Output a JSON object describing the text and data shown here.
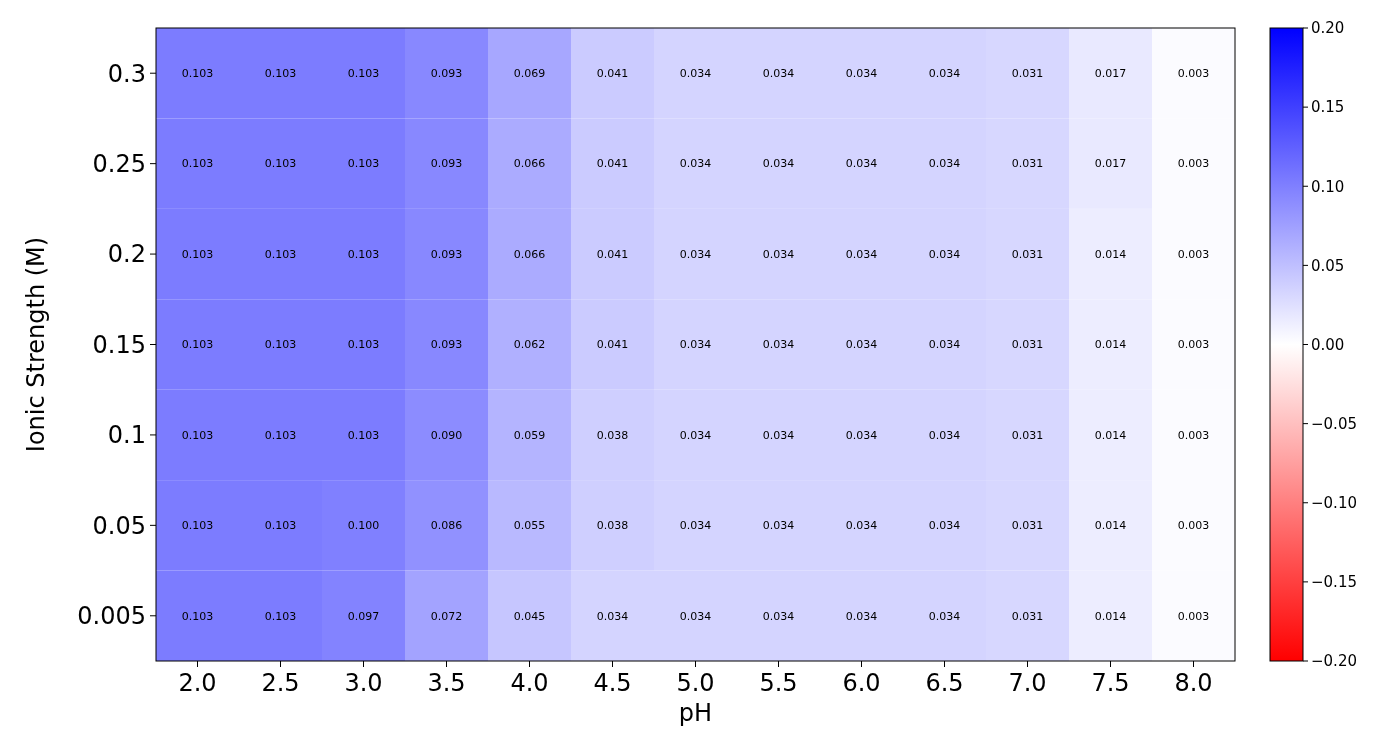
{
  "chart_data": {
    "type": "heatmap",
    "xlabel": "pH",
    "ylabel": "Ionic Strength (M)",
    "categories": [
      "2.0",
      "2.5",
      "3.0",
      "3.5",
      "4.0",
      "4.5",
      "5.0",
      "5.5",
      "6.0",
      "6.5",
      "7.0",
      "7.5",
      "8.0"
    ],
    "y_categories": [
      "0.3",
      "0.25",
      "0.2",
      "0.15",
      "0.1",
      "0.05",
      "0.005"
    ],
    "cells": [
      [
        0.103,
        0.103,
        0.103,
        0.093,
        0.069,
        0.041,
        0.034,
        0.034,
        0.034,
        0.034,
        0.031,
        0.017,
        0.003
      ],
      [
        0.103,
        0.103,
        0.103,
        0.093,
        0.066,
        0.041,
        0.034,
        0.034,
        0.034,
        0.034,
        0.031,
        0.017,
        0.003
      ],
      [
        0.103,
        0.103,
        0.103,
        0.093,
        0.066,
        0.041,
        0.034,
        0.034,
        0.034,
        0.034,
        0.031,
        0.014,
        0.003
      ],
      [
        0.103,
        0.103,
        0.103,
        0.093,
        0.062,
        0.041,
        0.034,
        0.034,
        0.034,
        0.034,
        0.031,
        0.014,
        0.003
      ],
      [
        0.103,
        0.103,
        0.103,
        0.09,
        0.059,
        0.038,
        0.034,
        0.034,
        0.034,
        0.034,
        0.031,
        0.014,
        0.003
      ],
      [
        0.103,
        0.103,
        0.1,
        0.086,
        0.055,
        0.038,
        0.034,
        0.034,
        0.034,
        0.034,
        0.031,
        0.014,
        0.003
      ],
      [
        0.103,
        0.103,
        0.097,
        0.072,
        0.045,
        0.034,
        0.034,
        0.034,
        0.034,
        0.034,
        0.031,
        0.014,
        0.003
      ]
    ],
    "cell_labels": [
      [
        "0.103",
        "0.103",
        "0.103",
        "0.093",
        "0.069",
        "0.041",
        "0.034",
        "0.034",
        "0.034",
        "0.034",
        "0.031",
        "0.017",
        "0.003"
      ],
      [
        "0.103",
        "0.103",
        "0.103",
        "0.093",
        "0.066",
        "0.041",
        "0.034",
        "0.034",
        "0.034",
        "0.034",
        "0.031",
        "0.017",
        "0.003"
      ],
      [
        "0.103",
        "0.103",
        "0.103",
        "0.093",
        "0.066",
        "0.041",
        "0.034",
        "0.034",
        "0.034",
        "0.034",
        "0.031",
        "0.014",
        "0.003"
      ],
      [
        "0.103",
        "0.103",
        "0.103",
        "0.093",
        "0.062",
        "0.041",
        "0.034",
        "0.034",
        "0.034",
        "0.034",
        "0.031",
        "0.014",
        "0.003"
      ],
      [
        "0.103",
        "0.103",
        "0.103",
        "0.090",
        "0.059",
        "0.038",
        "0.034",
        "0.034",
        "0.034",
        "0.034",
        "0.031",
        "0.014",
        "0.003"
      ],
      [
        "0.103",
        "0.103",
        "0.100",
        "0.086",
        "0.055",
        "0.038",
        "0.034",
        "0.034",
        "0.034",
        "0.034",
        "0.031",
        "0.014",
        "0.003"
      ],
      [
        "0.103",
        "0.103",
        "0.097",
        "0.072",
        "0.045",
        "0.034",
        "0.034",
        "0.034",
        "0.034",
        "0.034",
        "0.031",
        "0.014",
        "0.003"
      ]
    ],
    "clim": [
      -0.2,
      0.2
    ],
    "cticks": [
      {
        "value": -0.2,
        "label": "−0.20"
      },
      {
        "value": -0.15,
        "label": "−0.15"
      },
      {
        "value": -0.1,
        "label": "−0.10"
      },
      {
        "value": -0.05,
        "label": "−0.05"
      },
      {
        "value": 0,
        "label": "0.00"
      },
      {
        "value": 0.05,
        "label": "0.05"
      },
      {
        "value": 0.1,
        "label": "0.10"
      },
      {
        "value": 0.15,
        "label": "0.15"
      },
      {
        "value": 0.2,
        "label": "0.20"
      }
    ]
  }
}
